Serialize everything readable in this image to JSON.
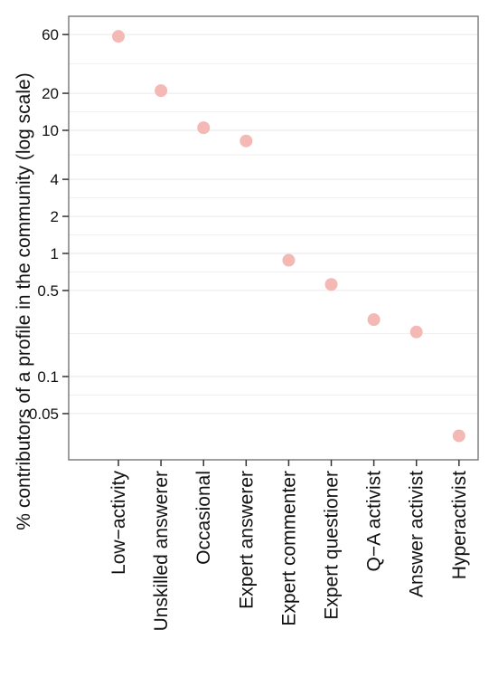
{
  "chart_data": {
    "type": "scatter",
    "title": "",
    "xlabel": "",
    "ylabel": "% contributors of a profile in the community (log scale)",
    "y_scale": "log",
    "ylim": [
      0.025,
      100
    ],
    "y_ticks": [
      0.05,
      0.1,
      0.5,
      1,
      2,
      4,
      10,
      20,
      60
    ],
    "y_tick_labels": [
      "0.05",
      "0.1",
      "0.5",
      "1",
      "2",
      "4",
      "10",
      "20",
      "60"
    ],
    "grid": true,
    "legend": "none",
    "categories": [
      "Low−activity",
      "Unskilled answerer",
      "Occasional",
      "Expert answerer",
      "Expert commenter",
      "Expert questioner",
      "Q−A activist",
      "Answer activist",
      "Hyperactivist"
    ],
    "values": [
      58,
      21,
      10.5,
      8.2,
      0.88,
      0.56,
      0.29,
      0.23,
      0.033
    ],
    "colors": {
      "point": "#f4b8b5",
      "panel_background": "#ffffff",
      "grid": "#ebebeb",
      "axis": "#7f7f7f"
    }
  }
}
